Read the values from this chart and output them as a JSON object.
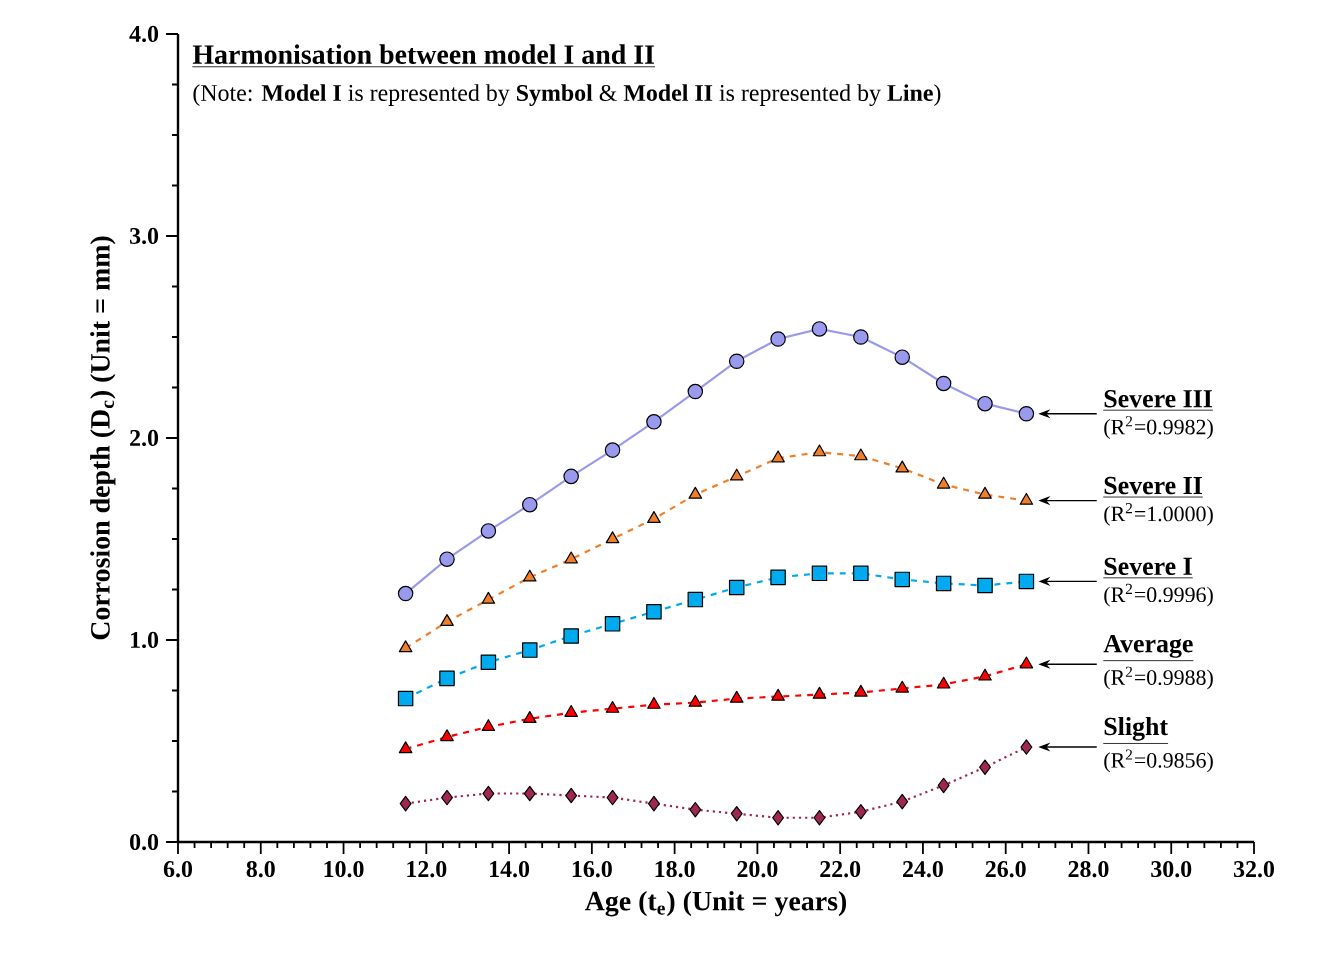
{
  "chart_data": {
    "type": "line",
    "title": "Harmonisation between model I and II",
    "subtitle": "(Note: **Model I** is represented by **Symbol** & **Model II** is represented by **Line**)",
    "xlabel": "Age (t$_{e}$) (Unit = years)",
    "ylabel": "Corrosion depth (D$_{c}$) (Unit = mm)",
    "x": [
      11.5,
      12.5,
      13.5,
      14.5,
      15.5,
      16.5,
      17.5,
      18.5,
      19.5,
      20.5,
      21.5,
      22.5,
      23.5,
      24.5,
      25.5,
      26.5
    ],
    "series": [
      {
        "name": "Severe III",
        "color": "#9999ee",
        "marker": "circle",
        "line_style": "solid",
        "values": [
          1.23,
          1.4,
          1.54,
          1.67,
          1.81,
          1.94,
          2.08,
          2.23,
          2.38,
          2.49,
          2.54,
          2.5,
          2.4,
          2.27,
          2.17,
          2.12
        ]
      },
      {
        "name": "Severe II",
        "color": "#f07f2a",
        "marker": "triangle",
        "line_style": "dashed",
        "values": [
          0.96,
          1.09,
          1.2,
          1.31,
          1.4,
          1.5,
          1.6,
          1.72,
          1.81,
          1.9,
          1.93,
          1.91,
          1.85,
          1.77,
          1.72,
          1.69
        ]
      },
      {
        "name": "Severe I",
        "color": "#00aaee",
        "marker": "square",
        "line_style": "dashed",
        "values": [
          0.71,
          0.81,
          0.89,
          0.95,
          1.02,
          1.08,
          1.14,
          1.2,
          1.26,
          1.31,
          1.33,
          1.33,
          1.3,
          1.28,
          1.27,
          1.29
        ]
      },
      {
        "name": "Average",
        "color": "#ff0000",
        "marker": "triangle_down",
        "line_style": "dashed",
        "values": [
          0.46,
          0.52,
          0.57,
          0.61,
          0.64,
          0.66,
          0.68,
          0.69,
          0.71,
          0.72,
          0.73,
          0.74,
          0.76,
          0.78,
          0.82,
          0.88
        ]
      },
      {
        "name": "Slight",
        "color": "#a0284f",
        "marker": "diamond",
        "line_style": "dotted",
        "values": [
          0.19,
          0.22,
          0.24,
          0.24,
          0.23,
          0.22,
          0.19,
          0.16,
          0.14,
          0.12,
          0.12,
          0.15,
          0.2,
          0.28,
          0.37,
          0.47
        ]
      }
    ],
    "annotations": [
      "(R$^{2}$=0.9982)",
      "(R$^{2}$=1.0000)",
      "(R$^{2}$=0.9996)",
      "(R$^{2}$=0.9988)",
      "(R$^{2}$=0.9856)"
    ],
    "xlim": [
      6,
      32
    ],
    "ylim": [
      0,
      4
    ],
    "xticks": [
      {
        "value": 6,
        "label": "6.0"
      },
      {
        "value": 8,
        "label": "8.0"
      },
      {
        "value": 10,
        "label": "10.0"
      },
      {
        "value": 12,
        "label": "12.0"
      },
      {
        "value": 14,
        "label": "14.0"
      },
      {
        "value": 16,
        "label": "16.0"
      },
      {
        "value": 18,
        "label": "18.0"
      },
      {
        "value": 20,
        "label": "20.0"
      },
      {
        "value": 22,
        "label": "22.0"
      },
      {
        "value": 24,
        "label": "24.0"
      },
      {
        "value": 26,
        "label": "26.0"
      },
      {
        "value": 28,
        "label": "28.0"
      },
      {
        "value": 30,
        "label": "30.0"
      },
      {
        "value": 32,
        "label": "32.0"
      }
    ],
    "yticks": [
      {
        "value": 0,
        "label": "0.0"
      },
      {
        "value": 1,
        "label": "1.0"
      },
      {
        "value": 2,
        "label": "2.0"
      },
      {
        "value": 3,
        "label": "3.0"
      },
      {
        "value": 4,
        "label": "4.0"
      }
    ],
    "grid": false,
    "legend": "right"
  }
}
